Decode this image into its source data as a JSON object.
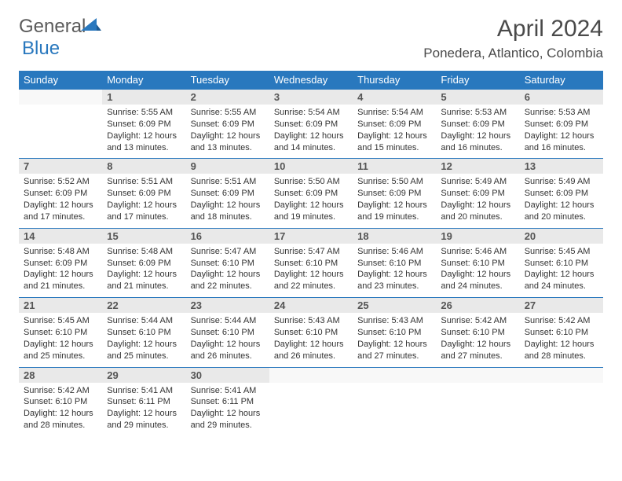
{
  "logo": {
    "text1": "General",
    "text2": "Blue"
  },
  "title": "April 2024",
  "location": "Ponedera, Atlantico, Colombia",
  "colors": {
    "header_bg": "#2978be",
    "header_text": "#ffffff",
    "daynum_bg": "#e9e9e9",
    "border": "#2978be",
    "body_text": "#333333",
    "title_text": "#4a4a4a"
  },
  "weekdays": [
    "Sunday",
    "Monday",
    "Tuesday",
    "Wednesday",
    "Thursday",
    "Friday",
    "Saturday"
  ],
  "weeks": [
    {
      "nums": [
        "",
        "1",
        "2",
        "3",
        "4",
        "5",
        "6"
      ],
      "cells": [
        null,
        {
          "sunrise": "Sunrise: 5:55 AM",
          "sunset": "Sunset: 6:09 PM",
          "day1": "Daylight: 12 hours",
          "day2": "and 13 minutes."
        },
        {
          "sunrise": "Sunrise: 5:55 AM",
          "sunset": "Sunset: 6:09 PM",
          "day1": "Daylight: 12 hours",
          "day2": "and 13 minutes."
        },
        {
          "sunrise": "Sunrise: 5:54 AM",
          "sunset": "Sunset: 6:09 PM",
          "day1": "Daylight: 12 hours",
          "day2": "and 14 minutes."
        },
        {
          "sunrise": "Sunrise: 5:54 AM",
          "sunset": "Sunset: 6:09 PM",
          "day1": "Daylight: 12 hours",
          "day2": "and 15 minutes."
        },
        {
          "sunrise": "Sunrise: 5:53 AM",
          "sunset": "Sunset: 6:09 PM",
          "day1": "Daylight: 12 hours",
          "day2": "and 16 minutes."
        },
        {
          "sunrise": "Sunrise: 5:53 AM",
          "sunset": "Sunset: 6:09 PM",
          "day1": "Daylight: 12 hours",
          "day2": "and 16 minutes."
        }
      ]
    },
    {
      "nums": [
        "7",
        "8",
        "9",
        "10",
        "11",
        "12",
        "13"
      ],
      "cells": [
        {
          "sunrise": "Sunrise: 5:52 AM",
          "sunset": "Sunset: 6:09 PM",
          "day1": "Daylight: 12 hours",
          "day2": "and 17 minutes."
        },
        {
          "sunrise": "Sunrise: 5:51 AM",
          "sunset": "Sunset: 6:09 PM",
          "day1": "Daylight: 12 hours",
          "day2": "and 17 minutes."
        },
        {
          "sunrise": "Sunrise: 5:51 AM",
          "sunset": "Sunset: 6:09 PM",
          "day1": "Daylight: 12 hours",
          "day2": "and 18 minutes."
        },
        {
          "sunrise": "Sunrise: 5:50 AM",
          "sunset": "Sunset: 6:09 PM",
          "day1": "Daylight: 12 hours",
          "day2": "and 19 minutes."
        },
        {
          "sunrise": "Sunrise: 5:50 AM",
          "sunset": "Sunset: 6:09 PM",
          "day1": "Daylight: 12 hours",
          "day2": "and 19 minutes."
        },
        {
          "sunrise": "Sunrise: 5:49 AM",
          "sunset": "Sunset: 6:09 PM",
          "day1": "Daylight: 12 hours",
          "day2": "and 20 minutes."
        },
        {
          "sunrise": "Sunrise: 5:49 AM",
          "sunset": "Sunset: 6:09 PM",
          "day1": "Daylight: 12 hours",
          "day2": "and 20 minutes."
        }
      ]
    },
    {
      "nums": [
        "14",
        "15",
        "16",
        "17",
        "18",
        "19",
        "20"
      ],
      "cells": [
        {
          "sunrise": "Sunrise: 5:48 AM",
          "sunset": "Sunset: 6:09 PM",
          "day1": "Daylight: 12 hours",
          "day2": "and 21 minutes."
        },
        {
          "sunrise": "Sunrise: 5:48 AM",
          "sunset": "Sunset: 6:09 PM",
          "day1": "Daylight: 12 hours",
          "day2": "and 21 minutes."
        },
        {
          "sunrise": "Sunrise: 5:47 AM",
          "sunset": "Sunset: 6:10 PM",
          "day1": "Daylight: 12 hours",
          "day2": "and 22 minutes."
        },
        {
          "sunrise": "Sunrise: 5:47 AM",
          "sunset": "Sunset: 6:10 PM",
          "day1": "Daylight: 12 hours",
          "day2": "and 22 minutes."
        },
        {
          "sunrise": "Sunrise: 5:46 AM",
          "sunset": "Sunset: 6:10 PM",
          "day1": "Daylight: 12 hours",
          "day2": "and 23 minutes."
        },
        {
          "sunrise": "Sunrise: 5:46 AM",
          "sunset": "Sunset: 6:10 PM",
          "day1": "Daylight: 12 hours",
          "day2": "and 24 minutes."
        },
        {
          "sunrise": "Sunrise: 5:45 AM",
          "sunset": "Sunset: 6:10 PM",
          "day1": "Daylight: 12 hours",
          "day2": "and 24 minutes."
        }
      ]
    },
    {
      "nums": [
        "21",
        "22",
        "23",
        "24",
        "25",
        "26",
        "27"
      ],
      "cells": [
        {
          "sunrise": "Sunrise: 5:45 AM",
          "sunset": "Sunset: 6:10 PM",
          "day1": "Daylight: 12 hours",
          "day2": "and 25 minutes."
        },
        {
          "sunrise": "Sunrise: 5:44 AM",
          "sunset": "Sunset: 6:10 PM",
          "day1": "Daylight: 12 hours",
          "day2": "and 25 minutes."
        },
        {
          "sunrise": "Sunrise: 5:44 AM",
          "sunset": "Sunset: 6:10 PM",
          "day1": "Daylight: 12 hours",
          "day2": "and 26 minutes."
        },
        {
          "sunrise": "Sunrise: 5:43 AM",
          "sunset": "Sunset: 6:10 PM",
          "day1": "Daylight: 12 hours",
          "day2": "and 26 minutes."
        },
        {
          "sunrise": "Sunrise: 5:43 AM",
          "sunset": "Sunset: 6:10 PM",
          "day1": "Daylight: 12 hours",
          "day2": "and 27 minutes."
        },
        {
          "sunrise": "Sunrise: 5:42 AM",
          "sunset": "Sunset: 6:10 PM",
          "day1": "Daylight: 12 hours",
          "day2": "and 27 minutes."
        },
        {
          "sunrise": "Sunrise: 5:42 AM",
          "sunset": "Sunset: 6:10 PM",
          "day1": "Daylight: 12 hours",
          "day2": "and 28 minutes."
        }
      ]
    },
    {
      "nums": [
        "28",
        "29",
        "30",
        "",
        "",
        "",
        ""
      ],
      "cells": [
        {
          "sunrise": "Sunrise: 5:42 AM",
          "sunset": "Sunset: 6:10 PM",
          "day1": "Daylight: 12 hours",
          "day2": "and 28 minutes."
        },
        {
          "sunrise": "Sunrise: 5:41 AM",
          "sunset": "Sunset: 6:11 PM",
          "day1": "Daylight: 12 hours",
          "day2": "and 29 minutes."
        },
        {
          "sunrise": "Sunrise: 5:41 AM",
          "sunset": "Sunset: 6:11 PM",
          "day1": "Daylight: 12 hours",
          "day2": "and 29 minutes."
        },
        null,
        null,
        null,
        null
      ]
    }
  ]
}
